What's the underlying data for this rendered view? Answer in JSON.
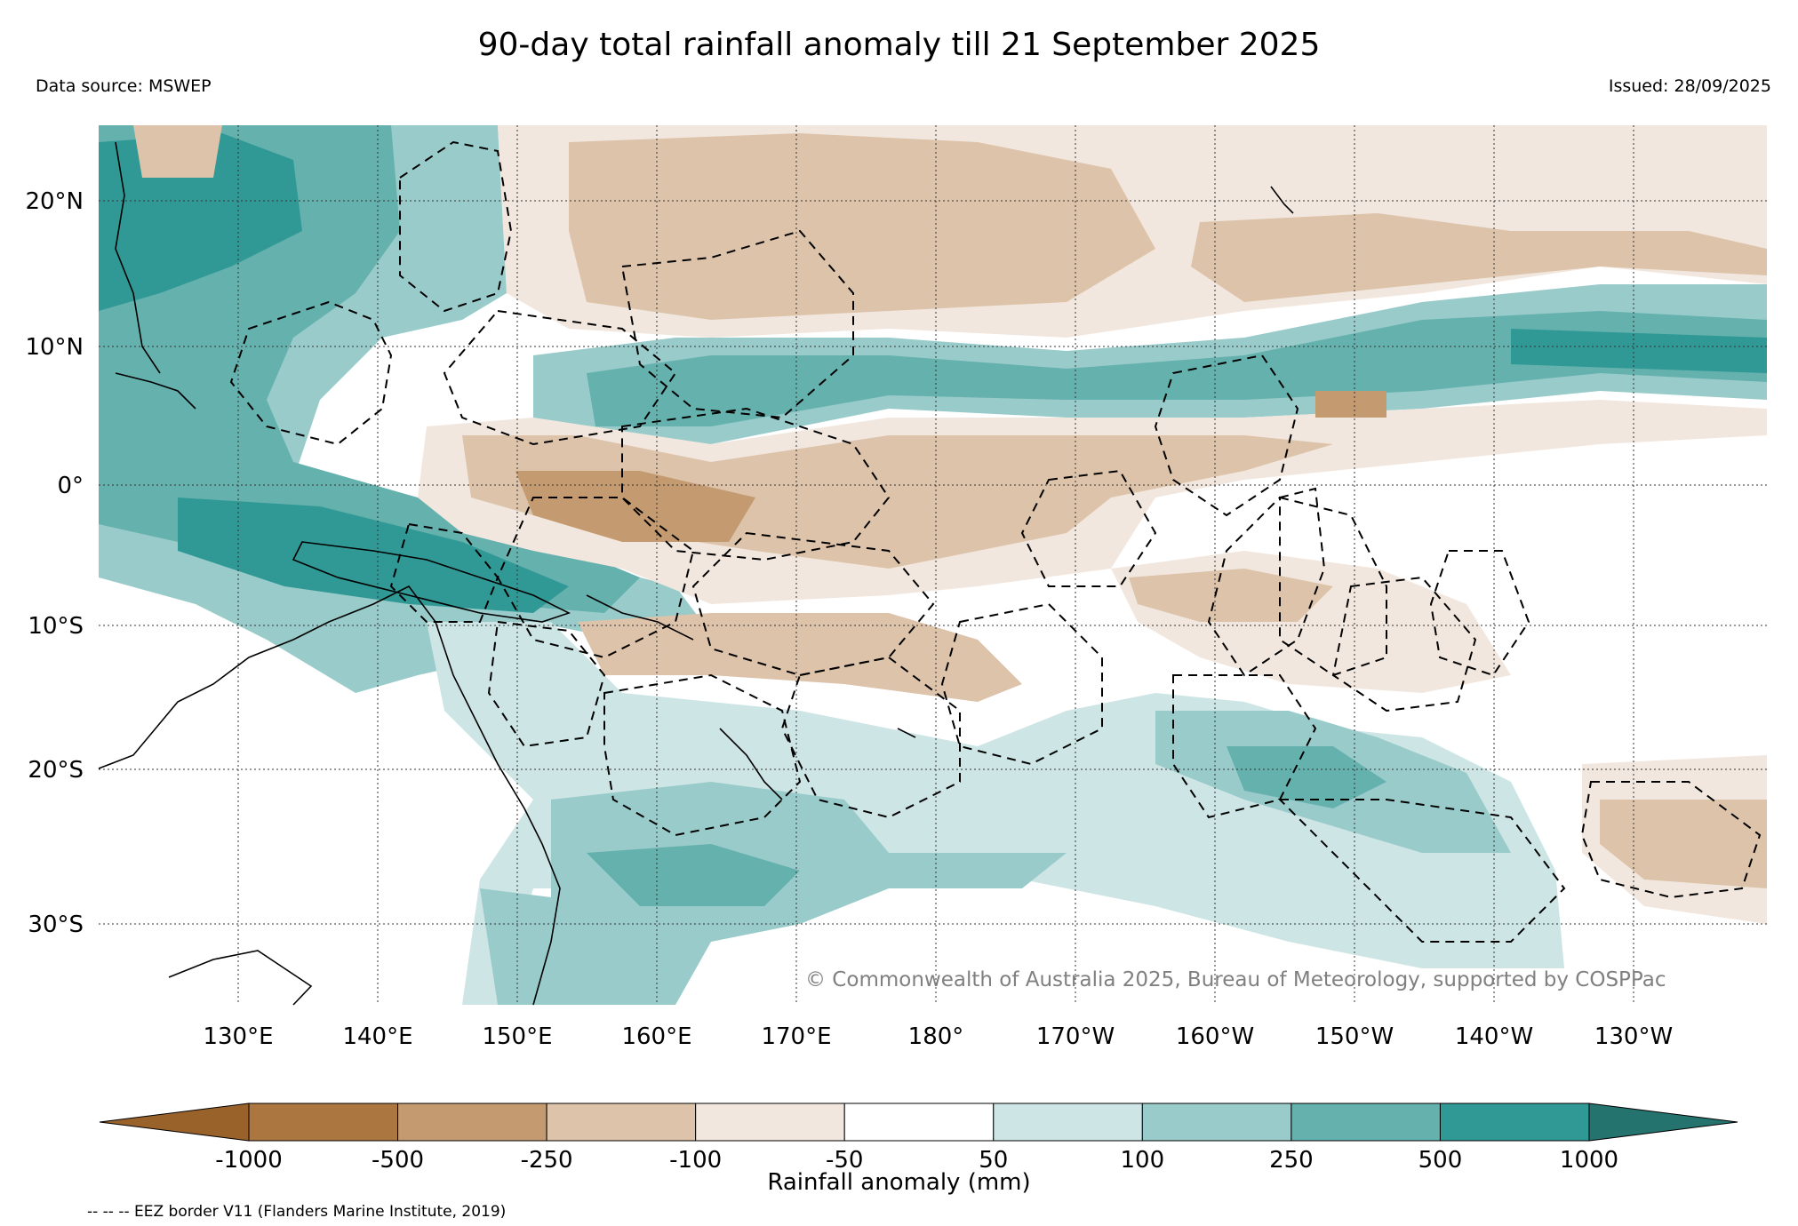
{
  "title": "90-day total rainfall anomaly till 21 September 2025",
  "data_source": "Data source: MSWEP",
  "issued": "Issued: 28/09/2025",
  "credit": "© Commonwealth of Australia 2025, Bureau of Meteorology, supported by COSPPac",
  "colorbar": {
    "label": "Rainfall anomaly (mm)",
    "ticks": [
      "-1000",
      "-500",
      "-250",
      "-100",
      "-50",
      "50",
      "100",
      "250",
      "500",
      "1000"
    ],
    "colors": [
      "#98622a",
      "#ac7640",
      "#c49a70",
      "#dcc3aa",
      "#f2e7de",
      "#ffffff",
      "#cde5e5",
      "#98cbca",
      "#65b1ae",
      "#319995",
      "#24736f"
    ]
  },
  "eez_note": "-- -- -- EEZ border V11 (Flanders Marine Institute, 2019)",
  "map": {
    "lon_labels": [
      "130°E",
      "140°E",
      "150°E",
      "160°E",
      "170°E",
      "180°",
      "170°W",
      "160°W",
      "150°W",
      "140°W",
      "130°W"
    ],
    "lat_labels": [
      "20°N",
      "10°N",
      "0°",
      "10°S",
      "20°S",
      "30°S"
    ]
  }
}
